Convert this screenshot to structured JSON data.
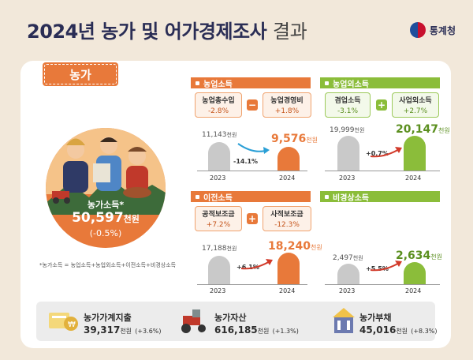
{
  "header": {
    "year": "2024년",
    "title_bold": "농가 및 어가경제조사",
    "title_light": "결과",
    "agency": "통계청"
  },
  "farm_tab": "농가",
  "farm_income": {
    "label": "농가소득",
    "mark": "*",
    "value": "50,597",
    "unit": "천원",
    "change": "(-0.5%)"
  },
  "footnote": "*농가소득 = 농업소득+농업외소득+이전소득+비경상소득",
  "sections": {
    "agri": {
      "title": "농업소득",
      "box1": {
        "label": "농업총수입",
        "value": "-2.8%"
      },
      "op": "−",
      "box2": {
        "label": "농업경영비",
        "value": "+1.8%"
      },
      "prev": "11,143",
      "prev_unit": "천원",
      "cur": "9,576",
      "cur_unit": "천원",
      "change": "-14.1%",
      "y1": "2023",
      "y2": "2024"
    },
    "nonagri": {
      "title": "농업외소득",
      "box1": {
        "label": "겸업소득",
        "value": "-3.1%"
      },
      "op": "+",
      "box2": {
        "label": "사업외소득",
        "value": "+2.7%"
      },
      "prev": "19,999",
      "prev_unit": "천원",
      "cur": "20,147",
      "cur_unit": "천원",
      "change": "+0.7%",
      "y1": "2023",
      "y2": "2024"
    },
    "transfer": {
      "title": "이전소득",
      "box1": {
        "label": "공적보조금",
        "value": "+7.2%"
      },
      "op": "+",
      "box2": {
        "label": "사적보조금",
        "value": "-12.3%"
      },
      "prev": "17,188",
      "prev_unit": "천원",
      "cur": "18,240",
      "cur_unit": "천원",
      "change": "+6.1%",
      "y1": "2023",
      "y2": "2024"
    },
    "irregular": {
      "title": "비경상소득",
      "prev": "2,497",
      "prev_unit": "천원",
      "cur": "2,634",
      "cur_unit": "천원",
      "change": "+5.5%",
      "y1": "2023",
      "y2": "2024"
    }
  },
  "bottom": {
    "expense": {
      "label": "농가가계지출",
      "value": "39,317",
      "unit": "천원",
      "change": "(+3.6%)"
    },
    "assets": {
      "label": "농가자산",
      "value": "616,185",
      "unit": "천원",
      "change": "(+1.3%)"
    },
    "debt": {
      "label": "농가부채",
      "value": "45,016",
      "unit": "천원",
      "change": "(+8.3%)"
    }
  },
  "colors": {
    "orange": "#e8793a",
    "green": "#8bbd3a",
    "navy": "#2a2d55",
    "gray": "#c9c9c9"
  }
}
